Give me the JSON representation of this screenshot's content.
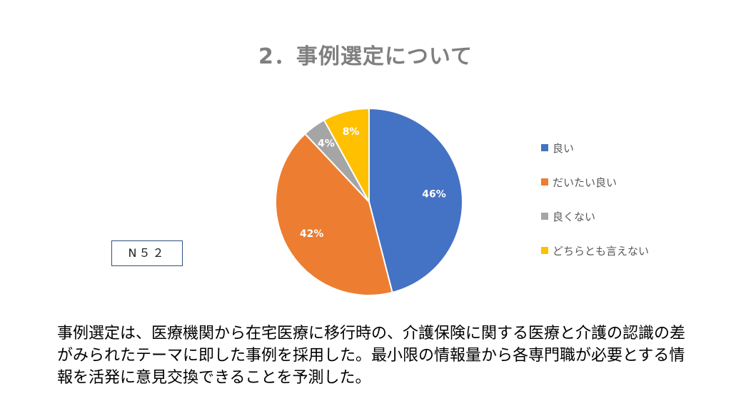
{
  "chart_data": {
    "type": "pie",
    "title": "2．事例選定について",
    "categories": [
      "良い",
      "だいたい良い",
      "良くない",
      "どちらとも言えない"
    ],
    "values": [
      46,
      42,
      4,
      8
    ],
    "labels": [
      "46%",
      "42%",
      "4%",
      "8%"
    ],
    "colors": [
      "#4472c4",
      "#ed7d31",
      "#a5a5a5",
      "#ffc000"
    ],
    "legend_position": "right"
  },
  "sample_label": "N５２",
  "caption": "事例選定は、医療機関から在宅医療に移行時の、介護保険に関する医療と介護の認識の差がみられたテーマに即した事例を採用した。最小限の情報量から各専門職が必要とする情報を活発に意見交換できることを予測した。"
}
